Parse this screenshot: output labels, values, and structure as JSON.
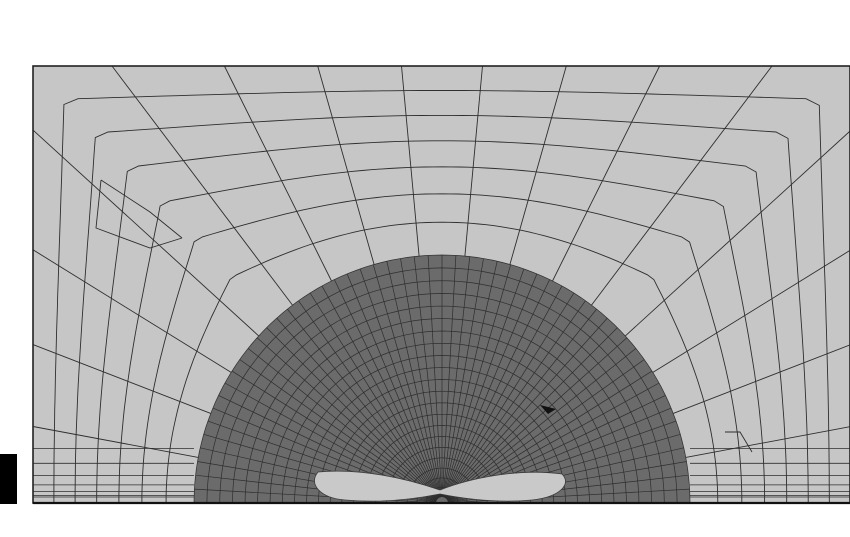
{
  "figure": {
    "kind": "finite-element mesh, half-domain cross-section",
    "colors": {
      "background": "#ffffff",
      "outer_region": "#c6c6c6",
      "inner_region": "#6b6b6b",
      "defect_region": "#c9c9c9",
      "mesh_lines": "#2e2e2e",
      "border": "#222222",
      "side_marker": "#000000"
    },
    "mesh": {
      "inner_radial_spokes": 56,
      "inner_rings": 22,
      "outer_radial_spokes": 17,
      "outer_rings": 6,
      "bottom_strip_layers": 7
    }
  }
}
